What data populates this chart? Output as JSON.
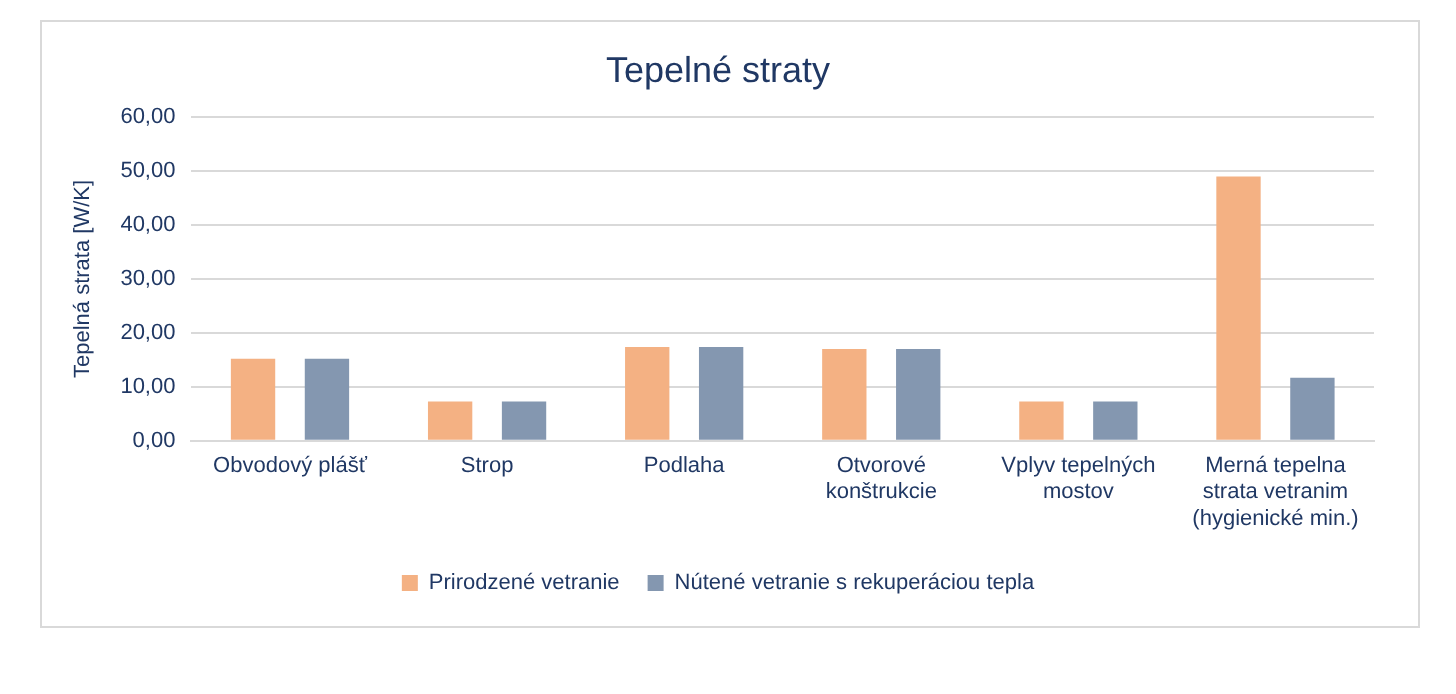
{
  "chart_data": {
    "type": "bar",
    "title": "Tepelné straty",
    "ylabel": "Tepelná strata [W/K]",
    "categories": [
      "Obvodový plášť",
      "Strop",
      "Podlaha",
      "Otvorové konštrukcie",
      "Vplyv tepelných mostov",
      "Merná tepelna strata vetranim (hygienické min.)"
    ],
    "series": [
      {
        "name": "Prirodzené vetranie",
        "color": "#f4b183",
        "values": [
          15.2,
          7.3,
          17.4,
          17.0,
          7.3,
          49.0
        ]
      },
      {
        "name": "Nútené vetranie s rekuperáciou tepla",
        "color": "#8497b0",
        "values": [
          15.2,
          7.3,
          17.4,
          17.0,
          7.3,
          11.7
        ]
      }
    ],
    "ylim": [
      0,
      60
    ],
    "yticks": [
      {
        "value": 0,
        "label": "0,00"
      },
      {
        "value": 10,
        "label": "10,00"
      },
      {
        "value": 20,
        "label": "20,00"
      },
      {
        "value": 30,
        "label": "30,00"
      },
      {
        "value": 40,
        "label": "40,00"
      },
      {
        "value": 50,
        "label": "50,00"
      },
      {
        "value": 60,
        "label": "60,00"
      }
    ],
    "grid": "y",
    "legend": "bottom"
  }
}
